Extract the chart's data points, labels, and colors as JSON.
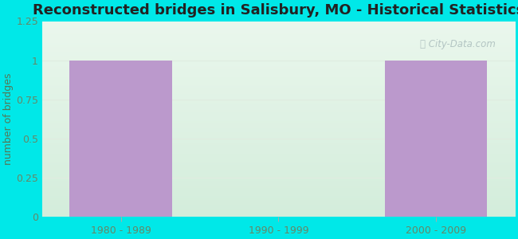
{
  "title": "Reconstructed bridges in Salisbury, MO - Historical Statistics",
  "categories": [
    "1980 - 1989",
    "1990 - 1999",
    "2000 - 2009"
  ],
  "values": [
    1,
    0,
    1
  ],
  "bar_color": "#bb99cc",
  "ylabel": "number of bridges",
  "ylim": [
    0,
    1.25
  ],
  "yticks": [
    0,
    0.25,
    0.5,
    0.75,
    1,
    1.25
  ],
  "background_outer": "#00e8e8",
  "background_inner_topleft": "#d8ede0",
  "background_inner_topright": "#eaf4f0",
  "background_inner_bottomleft": "#d8eddc",
  "background_inner_bottomright": "#f0faf0",
  "grid_color": "#e0ece0",
  "title_fontsize": 13,
  "label_fontsize": 9,
  "tick_fontsize": 9,
  "bar_width": 0.65,
  "watermark": "City-Data.com",
  "tick_color": "#668866",
  "label_color": "#557755",
  "title_color": "#222222"
}
